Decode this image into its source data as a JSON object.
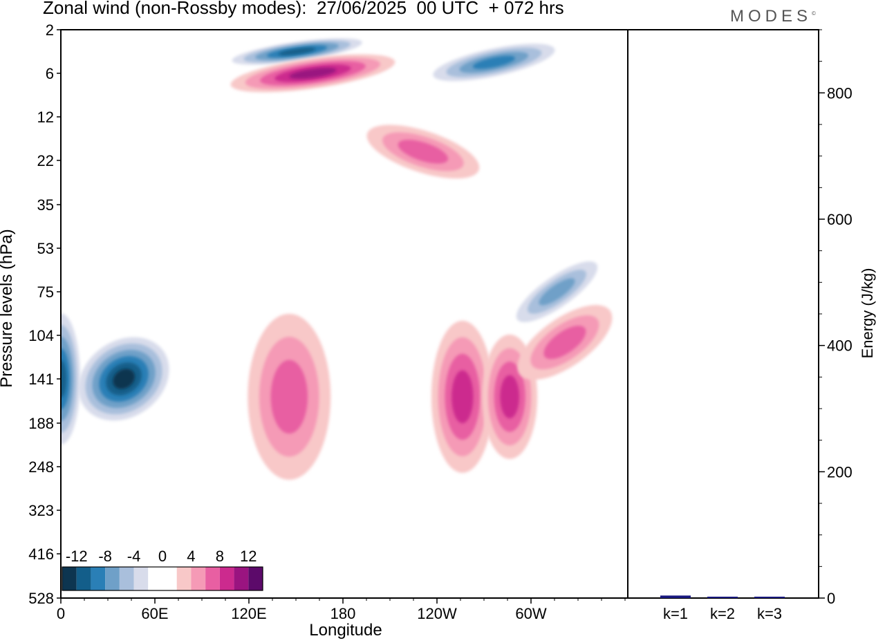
{
  "title": "Zonal wind (non-Rossby modes):  27/06/2025  00 UTC  + 072 hrs",
  "brand": "MODES",
  "chart_data": [
    {
      "type": "heatmap",
      "title": "Zonal wind (non-Rossby modes):  27/06/2025  00 UTC  + 072 hrs",
      "xlabel": "Longitude",
      "ylabel": "Pressure levels (hPa)",
      "x_ticks": [
        "0",
        "60E",
        "120E",
        "180",
        "120W",
        "60W"
      ],
      "y_ticks": [
        "2",
        "6",
        "12",
        "22",
        "35",
        "53",
        "75",
        "104",
        "141",
        "188",
        "248",
        "323",
        "416",
        "528"
      ],
      "colorbar": {
        "tick_labels": [
          "-12",
          "-8",
          "-4",
          "0",
          "4",
          "8",
          "12"
        ],
        "colors": [
          "#0d3550",
          "#135e8a",
          "#2a7fb6",
          "#6fa0c8",
          "#a9bfdc",
          "#d8dceb",
          "#ffffff",
          "#ffffff",
          "#f8c8c8",
          "#f59ab6",
          "#e85fa2",
          "#cc2a8e",
          "#9a1480",
          "#5c0a6a"
        ]
      },
      "features": [
        {
          "sign": "negative",
          "lon": 40,
          "level": 141,
          "peak": -12
        },
        {
          "sign": "negative",
          "lon": 0,
          "level": 141,
          "peak": -10
        },
        {
          "sign": "negative",
          "lon": 150,
          "level": 4,
          "peak": -10
        },
        {
          "sign": "negative",
          "lon": 275,
          "level": 5,
          "peak": -8
        },
        {
          "sign": "negative",
          "lon": 315,
          "level": 75,
          "peak": -6
        },
        {
          "sign": "positive",
          "lon": 160,
          "level": 6,
          "peak": 10
        },
        {
          "sign": "positive",
          "lon": 230,
          "level": 20,
          "peak": 6
        },
        {
          "sign": "positive",
          "lon": 145,
          "level": 160,
          "peak": 6
        },
        {
          "sign": "positive",
          "lon": 255,
          "level": 160,
          "peak": 8
        },
        {
          "sign": "positive",
          "lon": 285,
          "level": 160,
          "peak": 8
        },
        {
          "sign": "positive",
          "lon": 320,
          "level": 110,
          "peak": 6
        }
      ]
    },
    {
      "type": "bar",
      "categories": [
        "k=1",
        "k=2",
        "k=3"
      ],
      "values": [
        4,
        1,
        0.5
      ],
      "ylabel": "Energy (J/kg)",
      "ylim": [
        0,
        900
      ],
      "y_ticks": [
        "0",
        "200",
        "400",
        "600",
        "800"
      ],
      "bar_color": "#1a1a80"
    }
  ]
}
